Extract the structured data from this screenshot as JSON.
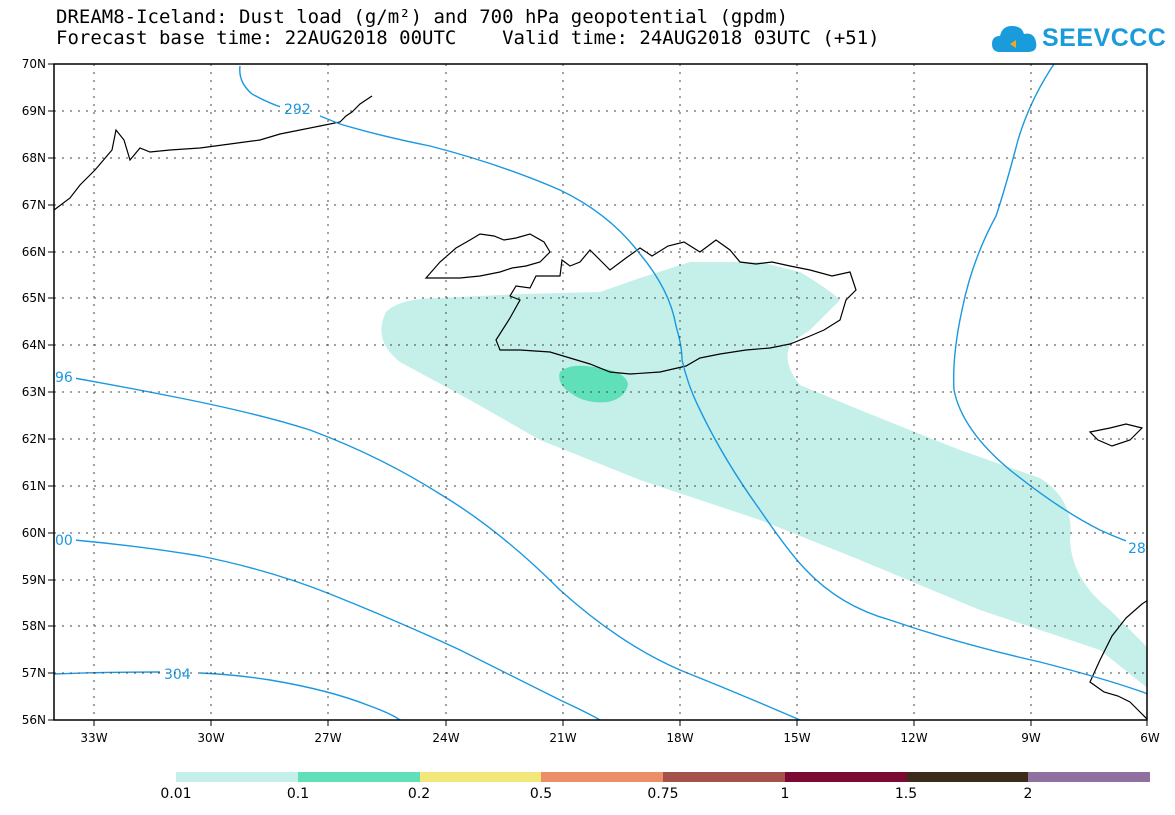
{
  "header": {
    "title_line1": "DREAM8-Iceland: Dust load (g/m²) and 700 hPa geopotential (gpdm)",
    "title_line2": "Forecast base time: 22AUG2018 00UTC    Valid time: 24AUG2018 03UTC (+51)"
  },
  "logo": {
    "text": "SEEVCCC",
    "icon": "cloud-icon",
    "color": "#1a9bdc"
  },
  "axes": {
    "lat_labels": [
      "70N",
      "69N",
      "68N",
      "67N",
      "66N",
      "65N",
      "64N",
      "63N",
      "62N",
      "61N",
      "60N",
      "59N",
      "58N",
      "57N",
      "56N"
    ],
    "lon_labels": [
      "33W",
      "30W",
      "27W",
      "24W",
      "21W",
      "18W",
      "15W",
      "12W",
      "9W",
      "6W"
    ]
  },
  "contour_labels": {
    "c292": "292",
    "c296": "96",
    "c300": "00",
    "c304": "304",
    "c28": "28"
  },
  "colors": {
    "contour": "#1a98e0",
    "dust_low": "#c5f0ea",
    "dust_mid": "#5fe0b8"
  },
  "colorbar": {
    "colors": [
      "#c5f0ea",
      "#5fe0b8",
      "#f2e87a",
      "#ec8f68",
      "#a4524a",
      "#7a0a32",
      "#3c2a1a",
      "#9070a0"
    ],
    "labels": [
      "0.01",
      "0.1",
      "0.2",
      "0.5",
      "0.75",
      "1",
      "1.5",
      "2"
    ]
  }
}
